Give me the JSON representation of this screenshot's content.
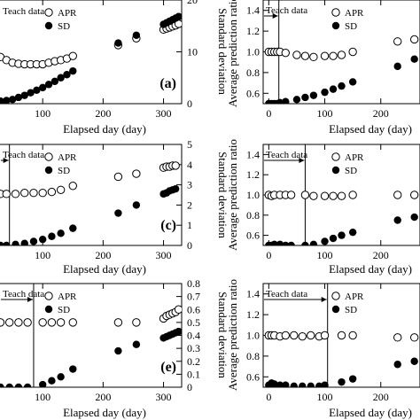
{
  "chart_data": [
    {
      "type": "scatter",
      "panel_label": "(a)",
      "xlabel": "Elapsed day (day)",
      "ylabel": "",
      "y2label": "Standard deviation",
      "xticks": [
        "100",
        "200",
        "300"
      ],
      "y2ticks": [
        "0",
        "10",
        "20"
      ],
      "xlim": [
        0,
        330
      ],
      "y2lim": [
        0,
        20
      ],
      "legend": [
        "APR",
        "SD"
      ],
      "legend_placement": "top-left",
      "teach_label": "Teach data",
      "teach_end_day": null,
      "series": [
        {
          "name": "APR",
          "marker": "open-circle",
          "axis": "right",
          "x": [
            0,
            10,
            20,
            30,
            40,
            50,
            60,
            70,
            80,
            90,
            100,
            110,
            120,
            130,
            140,
            150,
            225,
            255,
            300,
            305,
            310,
            315,
            320,
            325
          ],
          "y": [
            11.0,
            10.5,
            9.7,
            9.0,
            8.4,
            7.9,
            7.7,
            7.6,
            7.6,
            7.6,
            7.6,
            7.9,
            8.2,
            8.4,
            8.7,
            9.2,
            11.3,
            12.6,
            14.3,
            14.5,
            14.7,
            14.9,
            15.1,
            15.4
          ]
        },
        {
          "name": "SD",
          "marker": "filled-circle",
          "axis": "right",
          "x": [
            0,
            10,
            20,
            30,
            40,
            50,
            60,
            70,
            80,
            90,
            100,
            110,
            120,
            130,
            140,
            150,
            225,
            255,
            300,
            305,
            310,
            315,
            320,
            325
          ],
          "y": [
            0.2,
            0.3,
            0.4,
            0.5,
            0.6,
            0.8,
            1.2,
            1.6,
            2.1,
            2.6,
            3.1,
            3.7,
            4.3,
            5.0,
            5.6,
            6.3,
            11.7,
            13.2,
            15.3,
            15.6,
            15.9,
            16.2,
            16.5,
            16.8
          ]
        }
      ]
    },
    {
      "type": "scatter",
      "panel_label": "",
      "xlabel": "Elapsed day (day)",
      "ylabel": "Average prediction ratio",
      "xticks": [
        "0",
        "100",
        "200"
      ],
      "yticks": [
        "0.6",
        "0.8",
        "1.0",
        "1.2",
        "1.4"
      ],
      "xlim": [
        -10,
        270
      ],
      "ylim": [
        0.5,
        1.5
      ],
      "legend": [
        "APR",
        "SD"
      ],
      "legend_placement": "top-right",
      "teach_label": "Teach data",
      "teach_end_day": 18,
      "series": [
        {
          "name": "APR",
          "marker": "open-circle",
          "axis": "left",
          "x": [
            0,
            5,
            10,
            15,
            20,
            30,
            50,
            65,
            80,
            100,
            115,
            130,
            150,
            230,
            260
          ],
          "y": [
            1.0,
            1.0,
            1.0,
            1.0,
            1.0,
            0.99,
            0.97,
            0.96,
            0.95,
            0.96,
            0.96,
            0.97,
            1.0,
            1.1,
            1.12
          ]
        },
        {
          "name": "SD",
          "marker": "filled-circle",
          "axis": "left",
          "x": [
            0,
            5,
            10,
            15,
            20,
            30,
            50,
            65,
            80,
            100,
            115,
            130,
            150,
            230,
            260
          ],
          "y": [
            0.5,
            0.5,
            0.5,
            0.5,
            0.51,
            0.52,
            0.54,
            0.56,
            0.58,
            0.61,
            0.64,
            0.67,
            0.71,
            0.86,
            0.93
          ]
        }
      ]
    },
    {
      "type": "scatter",
      "panel_label": "(c)",
      "xlabel": "Elapsed day (day)",
      "ylabel": "",
      "y2label": "Standard deviation",
      "xticks": [
        "100",
        "200",
        "300"
      ],
      "y2ticks": [
        "0",
        "1",
        "2",
        "3",
        "4",
        "5"
      ],
      "xlim": [
        0,
        330
      ],
      "y2lim": [
        0,
        5
      ],
      "legend": [
        "APR",
        "SD"
      ],
      "legend_placement": "top-left",
      "teach_label": "Teach data",
      "teach_end_day": 45,
      "series": [
        {
          "name": "APR",
          "marker": "open-circle",
          "axis": "right",
          "x": [
            0,
            10,
            20,
            30,
            40,
            55,
            70,
            85,
            100,
            115,
            130,
            150,
            225,
            255,
            300,
            305,
            310,
            315,
            320
          ],
          "y": [
            2.55,
            2.55,
            2.55,
            2.55,
            2.55,
            2.55,
            2.6,
            2.6,
            2.6,
            2.65,
            2.75,
            2.95,
            3.4,
            3.55,
            3.85,
            3.9,
            3.9,
            3.95,
            3.95
          ]
        },
        {
          "name": "SD",
          "marker": "filled-circle",
          "axis": "right",
          "x": [
            0,
            10,
            20,
            30,
            40,
            55,
            70,
            85,
            100,
            115,
            130,
            150,
            225,
            255,
            300,
            305,
            310,
            315,
            320
          ],
          "y": [
            0.0,
            0.0,
            0.0,
            0.0,
            0.0,
            0.05,
            0.1,
            0.2,
            0.3,
            0.45,
            0.6,
            0.85,
            1.6,
            2.0,
            2.55,
            2.6,
            2.7,
            2.75,
            2.8
          ]
        }
      ]
    },
    {
      "type": "scatter",
      "panel_label": "",
      "xlabel": "Elapsed day (day)",
      "ylabel": "Average prediction ratio",
      "xticks": [
        "0",
        "100",
        "200"
      ],
      "yticks": [
        "0.6",
        "0.8",
        "1.0",
        "1.2",
        "1.4"
      ],
      "xlim": [
        -10,
        270
      ],
      "ylim": [
        0.5,
        1.5
      ],
      "legend": [
        "APR",
        "SD"
      ],
      "legend_placement": "top-right",
      "teach_label": "Teach data",
      "teach_end_day": 65,
      "series": [
        {
          "name": "APR",
          "marker": "open-circle",
          "axis": "left",
          "x": [
            0,
            5,
            10,
            20,
            30,
            40,
            65,
            80,
            100,
            115,
            130,
            150,
            230,
            260
          ],
          "y": [
            1.0,
            0.99,
            1.0,
            1.0,
            1.0,
            1.0,
            1.0,
            0.99,
            0.99,
            0.99,
            0.99,
            1.0,
            1.0,
            1.0
          ]
        },
        {
          "name": "SD",
          "marker": "filled-circle",
          "axis": "left",
          "x": [
            0,
            5,
            10,
            20,
            30,
            40,
            65,
            80,
            100,
            115,
            130,
            150,
            230,
            260
          ],
          "y": [
            0.5,
            0.5,
            0.51,
            0.51,
            0.5,
            0.5,
            0.5,
            0.51,
            0.54,
            0.57,
            0.6,
            0.63,
            0.75,
            0.78
          ]
        }
      ]
    },
    {
      "type": "scatter",
      "panel_label": "(e)",
      "xlabel": "Elapsed day (day)",
      "ylabel": "",
      "y2label": "Standard deviation",
      "xticks": [
        "100",
        "200",
        "300"
      ],
      "y2ticks": [
        "0",
        "0.1",
        "0.2",
        "0.3",
        "0.4",
        "0.5",
        "0.6",
        "0.7",
        "0.8"
      ],
      "xlim": [
        0,
        330
      ],
      "y2lim": [
        0,
        0.8
      ],
      "legend": [
        "APR",
        "SD"
      ],
      "legend_placement": "top-left",
      "teach_label": "Teach data",
      "teach_end_day": 85,
      "series": [
        {
          "name": "APR",
          "marker": "open-circle",
          "axis": "right",
          "x": [
            0,
            10,
            20,
            30,
            45,
            60,
            75,
            100,
            115,
            130,
            150,
            225,
            255,
            300,
            305,
            310,
            315,
            320,
            325
          ],
          "y": [
            0.5,
            0.5,
            0.5,
            0.5,
            0.5,
            0.5,
            0.5,
            0.5,
            0.5,
            0.5,
            0.5,
            0.5,
            0.5,
            0.53,
            0.55,
            0.56,
            0.57,
            0.58,
            0.6
          ]
        },
        {
          "name": "SD",
          "marker": "filled-circle",
          "axis": "right",
          "x": [
            0,
            10,
            20,
            30,
            45,
            60,
            75,
            100,
            115,
            130,
            150,
            225,
            255,
            300,
            305,
            310,
            315,
            320,
            325
          ],
          "y": [
            0.0,
            0.0,
            0.0,
            0.0,
            0.0,
            0.0,
            0.0,
            0.02,
            0.05,
            0.08,
            0.14,
            0.28,
            0.33,
            0.38,
            0.39,
            0.4,
            0.41,
            0.42,
            0.43
          ]
        }
      ]
    },
    {
      "type": "scatter",
      "panel_label": "",
      "xlabel": "Elapsed day (day)",
      "ylabel": "Average prediction ratio",
      "xticks": [
        "0",
        "100",
        "200"
      ],
      "yticks": [
        "0.6",
        "0.8",
        "1.0",
        "1.2",
        "1.4"
      ],
      "xlim": [
        -10,
        270
      ],
      "ylim": [
        0.5,
        1.5
      ],
      "legend": [
        "APR",
        "SD"
      ],
      "legend_placement": "top-right",
      "teach_label": "Teach data",
      "teach_end_day": 105,
      "series": [
        {
          "name": "APR",
          "marker": "open-circle",
          "axis": "left",
          "x": [
            0,
            5,
            10,
            20,
            30,
            45,
            60,
            75,
            90,
            100,
            130,
            150,
            230,
            260
          ],
          "y": [
            1.0,
            1.0,
            1.0,
            0.99,
            1.0,
            1.0,
            0.99,
            1.0,
            0.99,
            1.0,
            1.0,
            1.0,
            0.98,
            0.98
          ]
        },
        {
          "name": "SD",
          "marker": "filled-circle",
          "axis": "left",
          "x": [
            0,
            5,
            10,
            20,
            30,
            45,
            60,
            75,
            90,
            100,
            130,
            150,
            230,
            260
          ],
          "y": [
            0.52,
            0.54,
            0.53,
            0.52,
            0.52,
            0.51,
            0.51,
            0.51,
            0.51,
            0.52,
            0.55,
            0.58,
            0.72,
            0.75
          ]
        }
      ]
    }
  ]
}
